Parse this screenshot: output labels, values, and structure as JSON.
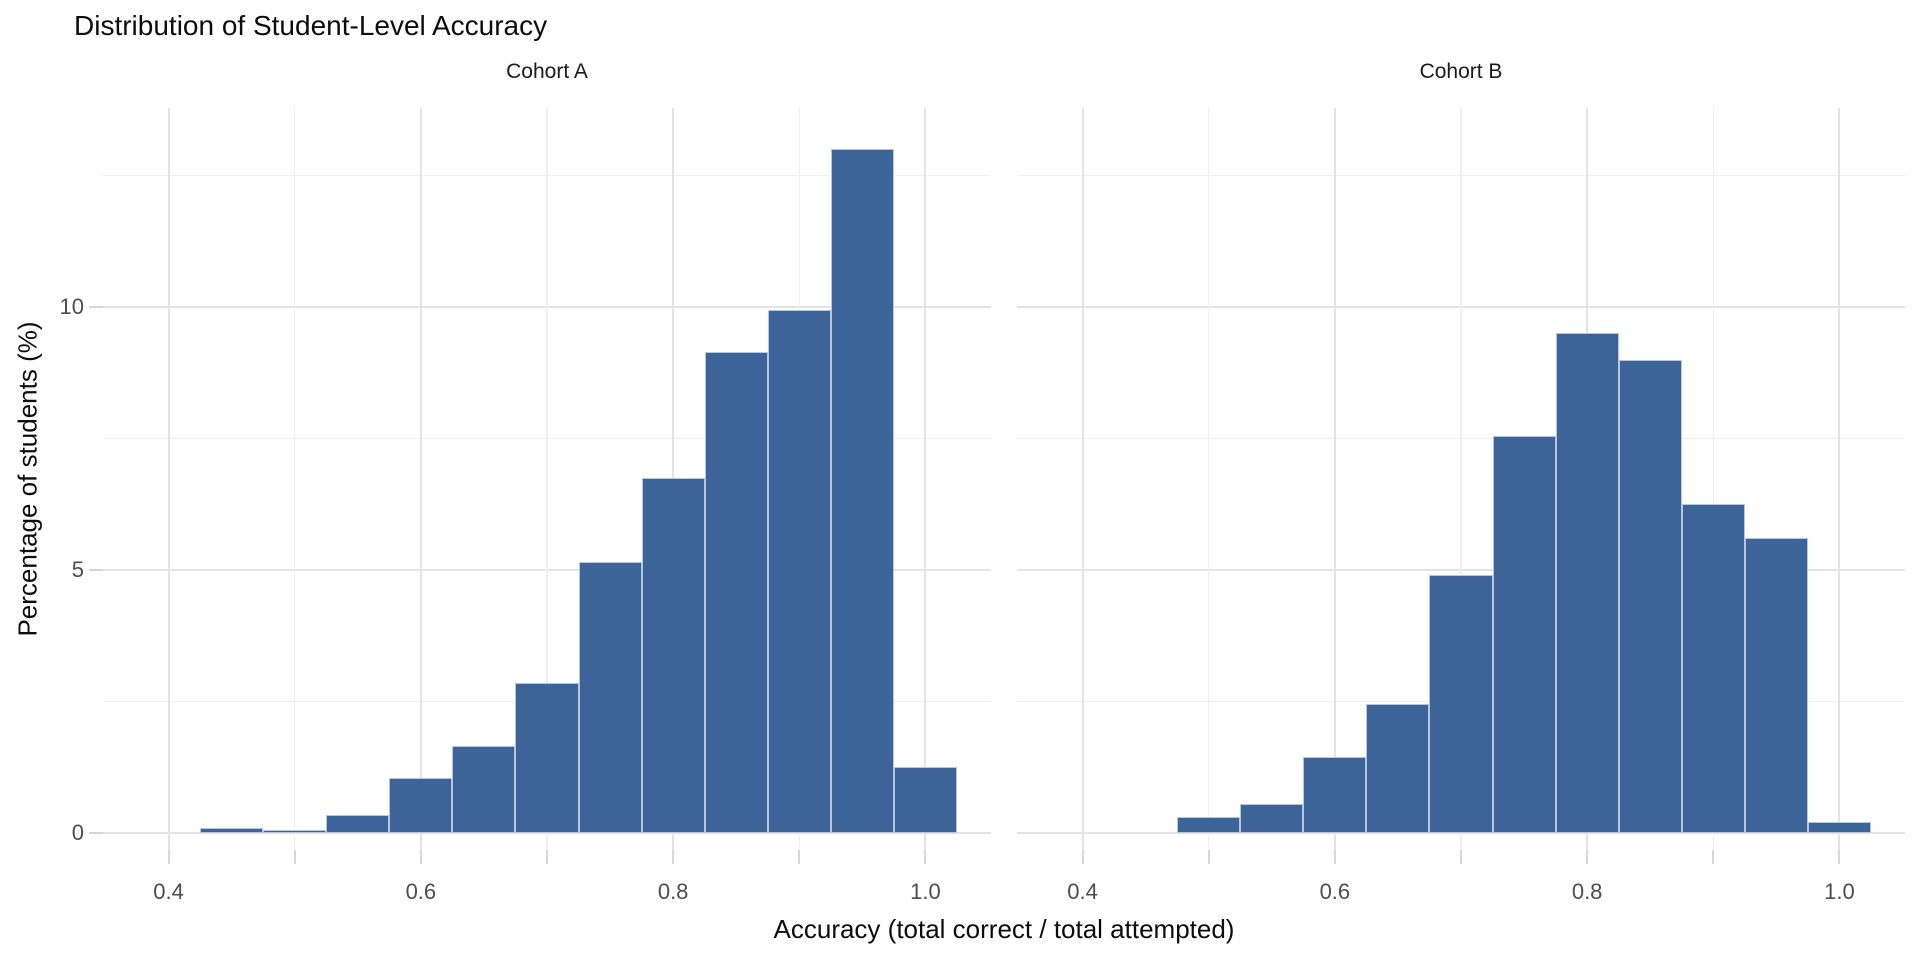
{
  "chart_data": {
    "type": "bar",
    "subtype": "faceted-histogram",
    "title": "Distribution of Student-Level Accuracy",
    "xlabel": "Accuracy (total correct / total attempted)",
    "ylabel": "Percentage of students (%)",
    "binwidth": 0.05,
    "xlim": [
      0.348,
      1.052
    ],
    "ylim": [
      -0.323,
      13.785
    ],
    "x_tick_positions": [
      0.4,
      0.5,
      0.6,
      0.7,
      0.8,
      0.9,
      1.0
    ],
    "x_labeled_ticks": [
      0.4,
      0.6,
      0.8,
      1.0
    ],
    "x_tick_labels": [
      "0.4",
      "0.6",
      "0.8",
      "1.0"
    ],
    "y_major_ticks": [
      0,
      5,
      10
    ],
    "y_tick_labels": [
      "0",
      "5",
      "10"
    ],
    "y_minor_gridlines": [
      2.5,
      7.5,
      12.5
    ],
    "x_minor_gridlines": [
      0.5,
      0.7,
      0.9
    ],
    "grid": true,
    "legend": "none",
    "facets": [
      {
        "label": "Cohort A",
        "bin_centers": [
          0.45,
          0.5,
          0.55,
          0.6,
          0.65,
          0.7,
          0.75,
          0.8,
          0.85,
          0.9,
          0.95,
          1.0
        ],
        "values": [
          0.1,
          0.05,
          0.35,
          1.05,
          1.65,
          2.85,
          5.15,
          6.75,
          9.15,
          9.95,
          13.0,
          1.25
        ]
      },
      {
        "label": "Cohort B",
        "bin_centers": [
          0.5,
          0.55,
          0.6,
          0.65,
          0.7,
          0.75,
          0.8,
          0.85,
          0.9,
          0.95,
          1.0
        ],
        "values": [
          0.3,
          0.55,
          1.45,
          2.45,
          4.9,
          7.55,
          9.5,
          9.0,
          6.25,
          5.6,
          0.2
        ]
      }
    ],
    "colors": {
      "bar_fill": "#3C6498",
      "bar_stroke": "#B8C7DC",
      "grid_major": "#E3E3E3",
      "grid_minor": "#EFEFEF",
      "tick_mark": "#D6D6D6",
      "axis_text": "#4D4D4D",
      "title_text": "#0D0D0D",
      "background": "#FFFFFF"
    }
  }
}
